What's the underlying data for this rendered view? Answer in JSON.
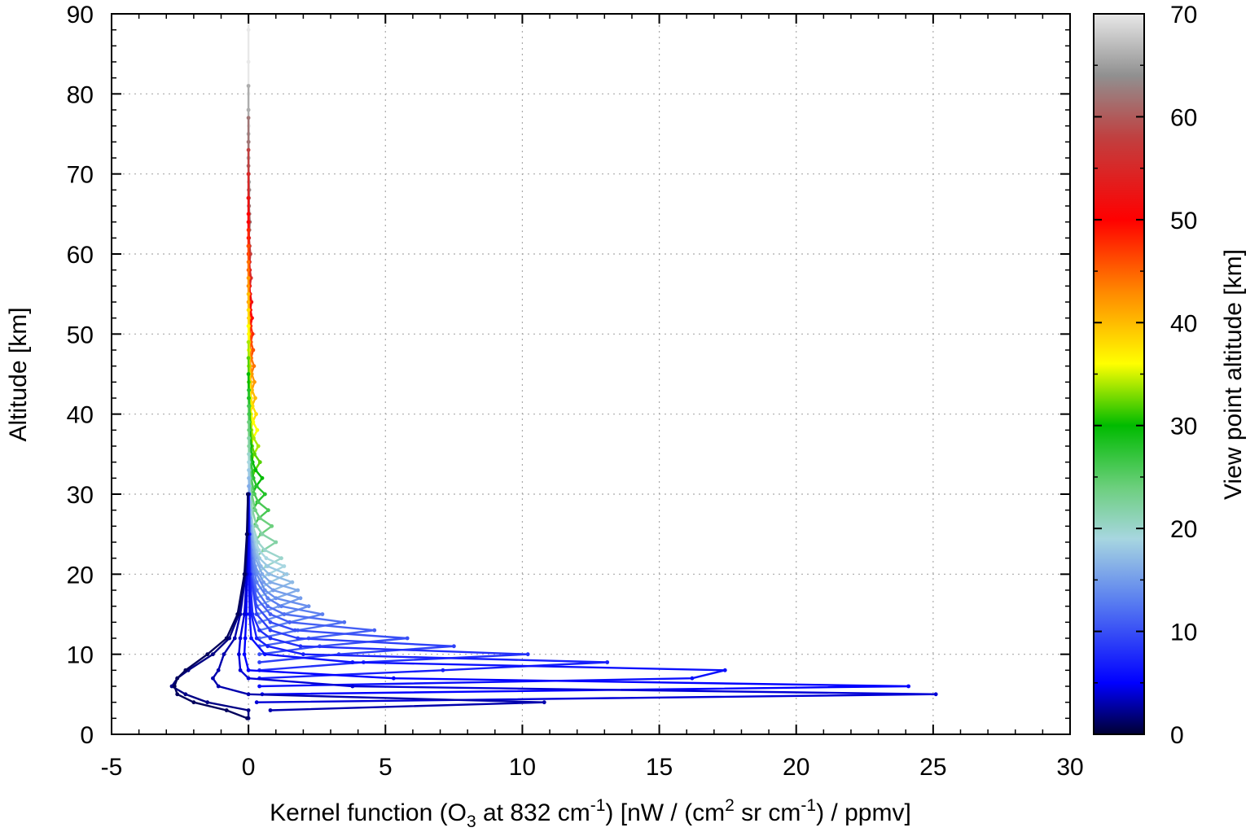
{
  "chart_data": {
    "type": "line",
    "xlabel": {
      "parts": [
        {
          "t": "Kernel function (O"
        },
        {
          "t": "3",
          "sub": true
        },
        {
          "t": " at 832 cm"
        },
        {
          "t": "-1",
          "sup": true
        },
        {
          "t": ") [nW / (cm"
        },
        {
          "t": "2",
          "sup": true
        },
        {
          "t": " sr cm"
        },
        {
          "t": "-1",
          "sup": true
        },
        {
          "t": ") / ppmv]"
        }
      ]
    },
    "ylabel": "Altitude [km]",
    "colorbar_label": "View point altitude [km]",
    "xlim": [
      -5,
      30
    ],
    "ylim": [
      0,
      90
    ],
    "x_ticks": [
      -5,
      0,
      5,
      10,
      15,
      20,
      25,
      30
    ],
    "y_ticks": [
      0,
      10,
      20,
      30,
      40,
      50,
      60,
      70,
      80,
      90
    ],
    "x_tick_labels": [
      "-5",
      "0",
      "5",
      "10",
      "15",
      "20",
      "25",
      "30"
    ],
    "y_tick_labels": [
      "0",
      "10",
      "20",
      "30",
      "40",
      "50",
      "60",
      "70",
      "80",
      "90"
    ],
    "colorbar_range": [
      0,
      70
    ],
    "colorbar_ticks": [
      0,
      10,
      20,
      30,
      40,
      50,
      60,
      70
    ],
    "colorbar_tick_labels": [
      "0",
      "10",
      "20",
      "30",
      "40",
      "50",
      "60",
      "70"
    ],
    "colormap": [
      {
        "v": 0,
        "color": "#000033"
      },
      {
        "v": 5,
        "color": "#0000ff"
      },
      {
        "v": 13,
        "color": "#5a7ff0"
      },
      {
        "v": 19,
        "color": "#a7d6e0"
      },
      {
        "v": 24,
        "color": "#6ccf7d"
      },
      {
        "v": 30,
        "color": "#00bb00"
      },
      {
        "v": 36,
        "color": "#ffff00"
      },
      {
        "v": 43,
        "color": "#ff8800"
      },
      {
        "v": 50,
        "color": "#ff0000"
      },
      {
        "v": 58,
        "color": "#c04040"
      },
      {
        "v": 64,
        "color": "#909090"
      },
      {
        "v": 70,
        "color": "#e8e8e8"
      }
    ],
    "grid": true,
    "series_x_by_altitude": [
      {
        "view_km": 1,
        "alt": [
          2,
          3,
          4,
          5,
          6,
          7,
          8,
          10,
          12,
          15,
          20,
          25,
          30
        ],
        "x": [
          -0.05,
          -0.8,
          -2.0,
          -2.6,
          -2.7,
          -2.6,
          -2.3,
          -1.5,
          -0.8,
          -0.4,
          -0.15,
          -0.06,
          -0.02
        ]
      },
      {
        "view_km": 2,
        "alt": [
          2,
          3,
          4,
          5,
          6,
          7,
          8,
          10,
          12,
          15,
          20,
          25,
          30
        ],
        "x": [
          0.0,
          0.0,
          -1.5,
          -2.3,
          -2.8,
          -2.6,
          -2.2,
          -1.3,
          -0.7,
          -0.35,
          -0.12,
          -0.05,
          -0.02
        ]
      },
      {
        "view_km": 3,
        "alt": [
          3,
          4,
          5,
          6,
          7,
          8,
          10,
          12,
          15,
          20,
          25,
          30
        ],
        "x": [
          0.8,
          10.8,
          0.0,
          -1.1,
          -1.3,
          -1.1,
          -0.9,
          -0.5,
          -0.3,
          -0.1,
          -0.04,
          -0.02
        ]
      },
      {
        "view_km": 4,
        "alt": [
          4,
          5,
          6,
          7,
          8,
          10,
          12,
          15,
          20,
          25,
          30
        ],
        "x": [
          0.3,
          25.1,
          3.8,
          0.0,
          -0.3,
          -0.35,
          -0.3,
          -0.15,
          -0.06,
          -0.03,
          -0.01
        ]
      },
      {
        "view_km": 5,
        "alt": [
          5,
          6,
          7,
          8,
          10,
          12,
          15,
          20,
          25,
          30
        ],
        "x": [
          0.5,
          24.1,
          5.3,
          0.0,
          -0.15,
          -0.12,
          -0.08,
          -0.04,
          -0.02,
          -0.01
        ]
      },
      {
        "view_km": 6,
        "alt": [
          6,
          7,
          8,
          9,
          10,
          12,
          15,
          20,
          25,
          30
        ],
        "x": [
          0.4,
          16.2,
          17.4,
          3.8,
          0.6,
          0.1,
          0.04,
          0.02,
          0.01,
          0.0
        ]
      },
      {
        "view_km": 7,
        "alt": [
          7,
          8,
          9,
          10,
          11,
          12,
          15,
          20,
          25,
          30
        ],
        "x": [
          0.4,
          7.1,
          13.1,
          2.0,
          0.7,
          0.3,
          0.1,
          0.04,
          0.02,
          0.01
        ]
      },
      {
        "view_km": 8,
        "alt": [
          8,
          9,
          10,
          11,
          12,
          13,
          15,
          20,
          25,
          30
        ],
        "x": [
          0.4,
          4.2,
          10.2,
          1.9,
          0.8,
          0.4,
          0.15,
          0.05,
          0.02,
          0.01
        ]
      },
      {
        "view_km": 9,
        "alt": [
          9,
          10,
          11,
          12,
          13,
          15,
          20,
          25,
          30
        ],
        "x": [
          0.4,
          3.3,
          7.5,
          1.8,
          0.8,
          0.3,
          0.07,
          0.03,
          0.01
        ]
      },
      {
        "view_km": 10,
        "alt": [
          10,
          11,
          12,
          13,
          14,
          16,
          20,
          25,
          30
        ],
        "x": [
          0.4,
          2.6,
          5.8,
          1.7,
          0.8,
          0.3,
          0.08,
          0.03,
          0.01
        ]
      },
      {
        "view_km": 11,
        "alt": [
          11,
          12,
          13,
          14,
          15,
          17,
          20,
          25,
          30
        ],
        "x": [
          0.4,
          2.2,
          4.6,
          1.5,
          0.8,
          0.3,
          0.1,
          0.03,
          0.01
        ]
      },
      {
        "view_km": 12,
        "alt": [
          12,
          13,
          14,
          15,
          16,
          18,
          20,
          25,
          30
        ],
        "x": [
          0.4,
          1.8,
          3.5,
          1.3,
          0.7,
          0.3,
          0.15,
          0.04,
          0.01
        ]
      },
      {
        "view_km": 13,
        "alt": [
          13,
          14,
          15,
          16,
          17,
          19,
          22,
          25,
          30
        ],
        "x": [
          0.4,
          1.5,
          2.7,
          1.2,
          0.7,
          0.3,
          0.1,
          0.04,
          0.01
        ]
      },
      {
        "view_km": 14,
        "alt": [
          14,
          15,
          16,
          17,
          18,
          20,
          23,
          26,
          30
        ],
        "x": [
          0.4,
          1.3,
          2.2,
          1.0,
          0.6,
          0.3,
          0.1,
          0.04,
          0.01
        ]
      },
      {
        "view_km": 15,
        "alt": [
          15,
          16,
          17,
          18,
          19,
          21,
          24,
          27,
          30
        ],
        "x": [
          0.35,
          1.1,
          1.9,
          0.9,
          0.55,
          0.25,
          0.1,
          0.04,
          0.01
        ]
      },
      {
        "view_km": 16,
        "alt": [
          16,
          17,
          18,
          19,
          20,
          22,
          25,
          28,
          31
        ],
        "x": [
          0.3,
          1.0,
          1.8,
          0.8,
          0.5,
          0.25,
          0.1,
          0.04,
          0.01
        ]
      },
      {
        "view_km": 17,
        "alt": [
          17,
          18,
          19,
          20,
          21,
          23,
          26,
          29,
          32
        ],
        "x": [
          0.3,
          0.9,
          1.6,
          0.75,
          0.45,
          0.22,
          0.09,
          0.04,
          0.01
        ]
      },
      {
        "view_km": 18,
        "alt": [
          18,
          19,
          20,
          21,
          22,
          24,
          27,
          30,
          33
        ],
        "x": [
          0.3,
          0.8,
          1.4,
          0.7,
          0.4,
          0.2,
          0.08,
          0.03,
          0.01
        ]
      },
      {
        "view_km": 19,
        "alt": [
          19,
          20,
          21,
          22,
          23,
          25,
          28,
          31,
          34
        ],
        "x": [
          0.28,
          0.72,
          1.3,
          0.65,
          0.38,
          0.18,
          0.07,
          0.03,
          0.01
        ]
      },
      {
        "view_km": 20,
        "alt": [
          20,
          21,
          22,
          23,
          24,
          26,
          29,
          32,
          35
        ],
        "x": [
          0.26,
          0.65,
          1.2,
          0.6,
          0.35,
          0.16,
          0.06,
          0.03,
          0.01
        ]
      },
      {
        "view_km": 22,
        "alt": [
          22,
          23,
          24,
          25,
          26,
          28,
          31,
          34,
          37
        ],
        "x": [
          0.24,
          0.55,
          1.0,
          0.5,
          0.3,
          0.14,
          0.05,
          0.02,
          0.01
        ]
      },
      {
        "view_km": 24,
        "alt": [
          24,
          25,
          26,
          27,
          28,
          30,
          33,
          36,
          39
        ],
        "x": [
          0.2,
          0.45,
          0.85,
          0.42,
          0.25,
          0.12,
          0.05,
          0.02,
          0.01
        ]
      },
      {
        "view_km": 26,
        "alt": [
          26,
          27,
          28,
          29,
          30,
          32,
          35,
          38,
          41
        ],
        "x": [
          0.18,
          0.38,
          0.72,
          0.36,
          0.22,
          0.1,
          0.04,
          0.02,
          0.01
        ]
      },
      {
        "view_km": 28,
        "alt": [
          28,
          29,
          30,
          31,
          32,
          34,
          37,
          40,
          43
        ],
        "x": [
          0.16,
          0.32,
          0.6,
          0.3,
          0.18,
          0.09,
          0.04,
          0.02,
          0.01
        ]
      },
      {
        "view_km": 30,
        "alt": [
          30,
          31,
          32,
          33,
          34,
          36,
          39,
          42,
          45
        ],
        "x": [
          0.14,
          0.28,
          0.5,
          0.26,
          0.15,
          0.08,
          0.03,
          0.01,
          0.0
        ]
      },
      {
        "view_km": 32,
        "alt": [
          32,
          33,
          34,
          35,
          36,
          38,
          41,
          44,
          47
        ],
        "x": [
          0.12,
          0.24,
          0.42,
          0.22,
          0.13,
          0.07,
          0.03,
          0.01,
          0.0
        ]
      },
      {
        "view_km": 34,
        "alt": [
          34,
          35,
          36,
          37,
          38,
          40,
          43,
          46,
          49
        ],
        "x": [
          0.1,
          0.2,
          0.36,
          0.19,
          0.11,
          0.06,
          0.02,
          0.01,
          0.0
        ]
      },
      {
        "view_km": 36,
        "alt": [
          36,
          37,
          38,
          39,
          40,
          42,
          45,
          48,
          51
        ],
        "x": [
          0.09,
          0.17,
          0.32,
          0.17,
          0.1,
          0.05,
          0.02,
          0.01,
          0.0
        ]
      },
      {
        "view_km": 38,
        "alt": [
          38,
          39,
          40,
          41,
          42,
          44,
          47,
          50,
          53
        ],
        "x": [
          0.08,
          0.15,
          0.28,
          0.15,
          0.09,
          0.04,
          0.02,
          0.01,
          0.0
        ]
      },
      {
        "view_km": 40,
        "alt": [
          40,
          41,
          42,
          43,
          44,
          46,
          49,
          52,
          55
        ],
        "x": [
          0.07,
          0.13,
          0.25,
          0.13,
          0.08,
          0.04,
          0.02,
          0.01,
          0.0
        ]
      },
      {
        "view_km": 42,
        "alt": [
          42,
          43,
          44,
          45,
          46,
          48,
          51,
          54,
          57
        ],
        "x": [
          0.06,
          0.12,
          0.22,
          0.12,
          0.07,
          0.03,
          0.01,
          0.0,
          0.0
        ]
      },
      {
        "view_km": 44,
        "alt": [
          44,
          45,
          46,
          47,
          48,
          50,
          53,
          56,
          59
        ],
        "x": [
          0.05,
          0.1,
          0.2,
          0.1,
          0.06,
          0.03,
          0.01,
          0.0,
          0.0
        ]
      },
      {
        "view_km": 46,
        "alt": [
          46,
          47,
          48,
          49,
          50,
          52,
          55,
          58,
          61
        ],
        "x": [
          0.04,
          0.09,
          0.17,
          0.09,
          0.05,
          0.02,
          0.01,
          0.0,
          0.0
        ]
      },
      {
        "view_km": 48,
        "alt": [
          48,
          49,
          50,
          51,
          52,
          54,
          57,
          60,
          63
        ],
        "x": [
          0.04,
          0.08,
          0.15,
          0.08,
          0.04,
          0.02,
          0.01,
          0.0,
          0.0
        ]
      },
      {
        "view_km": 50,
        "alt": [
          50,
          51,
          52,
          53,
          54,
          56,
          59,
          62,
          65
        ],
        "x": [
          0.03,
          0.07,
          0.13,
          0.07,
          0.04,
          0.02,
          0.01,
          0.0,
          0.0
        ]
      },
      {
        "view_km": 52,
        "alt": [
          52,
          53,
          54,
          55,
          56,
          58,
          61,
          64,
          67
        ],
        "x": [
          0.03,
          0.06,
          0.11,
          0.06,
          0.03,
          0.01,
          0.0,
          0.0,
          0.0
        ]
      },
      {
        "view_km": 55,
        "alt": [
          55,
          56,
          57,
          58,
          59,
          61,
          64,
          67,
          70
        ],
        "x": [
          0.02,
          0.05,
          0.09,
          0.05,
          0.03,
          0.01,
          0.0,
          0.0,
          0.0
        ]
      },
      {
        "view_km": 58,
        "alt": [
          58,
          59,
          60,
          61,
          62,
          64,
          67,
          70,
          73
        ],
        "x": [
          0.02,
          0.04,
          0.07,
          0.04,
          0.02,
          0.01,
          0.0,
          0.0,
          0.0
        ]
      },
      {
        "view_km": 62,
        "alt": [
          62,
          63,
          64,
          65,
          66,
          68,
          71,
          74,
          77
        ],
        "x": [
          0.01,
          0.03,
          0.05,
          0.03,
          0.02,
          0.01,
          0.0,
          0.0,
          0.0
        ]
      },
      {
        "view_km": 66,
        "alt": [
          66,
          67,
          68,
          69,
          70,
          72,
          75,
          78,
          81
        ],
        "x": [
          0.01,
          0.02,
          0.03,
          0.02,
          0.01,
          0.0,
          0.0,
          0.0,
          0.0
        ]
      },
      {
        "view_km": 70,
        "alt": [
          70,
          72,
          74,
          76,
          78,
          80,
          84,
          88,
          90
        ],
        "x": [
          0.0,
          0.01,
          0.02,
          0.01,
          0.0,
          0.0,
          0.0,
          0.0,
          0.0
        ]
      }
    ]
  }
}
